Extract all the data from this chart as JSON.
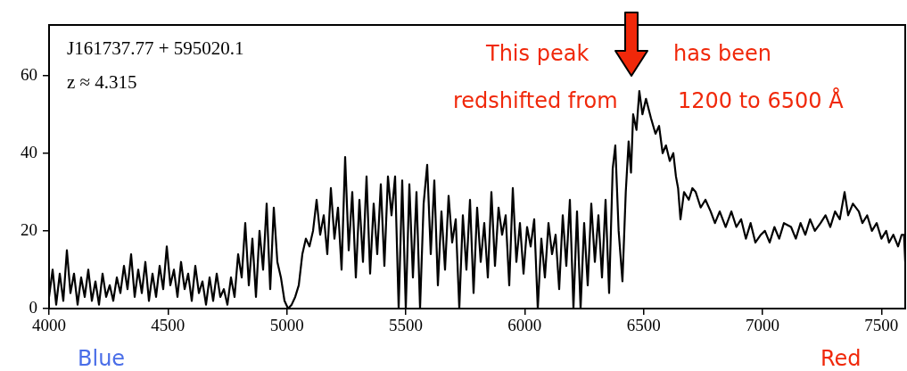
{
  "chart_data": {
    "type": "line",
    "color": "#000000",
    "x": [
      4000,
      4015,
      4030,
      4045,
      4060,
      4075,
      4090,
      4105,
      4120,
      4135,
      4150,
      4165,
      4180,
      4195,
      4210,
      4225,
      4240,
      4255,
      4270,
      4285,
      4300,
      4315,
      4330,
      4345,
      4360,
      4375,
      4390,
      4405,
      4420,
      4435,
      4450,
      4465,
      4480,
      4495,
      4510,
      4525,
      4540,
      4555,
      4570,
      4585,
      4600,
      4615,
      4630,
      4645,
      4660,
      4675,
      4690,
      4705,
      4720,
      4735,
      4750,
      4765,
      4780,
      4795,
      4810,
      4825,
      4840,
      4855,
      4870,
      4885,
      4900,
      4915,
      4930,
      4945,
      4960,
      4975,
      4990,
      5005,
      5020,
      5035,
      5050,
      5065,
      5080,
      5095,
      5110,
      5125,
      5140,
      5155,
      5170,
      5185,
      5200,
      5215,
      5230,
      5245,
      5260,
      5275,
      5290,
      5305,
      5320,
      5335,
      5350,
      5365,
      5380,
      5395,
      5410,
      5425,
      5440,
      5455,
      5470,
      5485,
      5500,
      5515,
      5530,
      5545,
      5560,
      5575,
      5590,
      5605,
      5620,
      5635,
      5650,
      5665,
      5680,
      5695,
      5710,
      5725,
      5740,
      5755,
      5770,
      5785,
      5800,
      5815,
      5830,
      5845,
      5860,
      5875,
      5890,
      5905,
      5920,
      5935,
      5950,
      5965,
      5980,
      5995,
      6010,
      6025,
      6040,
      6055,
      6070,
      6085,
      6100,
      6115,
      6130,
      6145,
      6160,
      6175,
      6190,
      6205,
      6220,
      6235,
      6250,
      6265,
      6280,
      6295,
      6310,
      6325,
      6340,
      6355,
      6370,
      6381,
      6395,
      6411,
      6425,
      6437,
      6447,
      6456,
      6470,
      6482,
      6495,
      6510,
      6531,
      6550,
      6565,
      6580,
      6594,
      6610,
      6625,
      6636,
      6645,
      6655,
      6670,
      6690,
      6705,
      6719,
      6740,
      6760,
      6782,
      6800,
      6820,
      6845,
      6869,
      6890,
      6910,
      6930,
      6950,
      6970,
      6993,
      7010,
      7030,
      7050,
      7070,
      7090,
      7120,
      7140,
      7160,
      7180,
      7200,
      7220,
      7244,
      7265,
      7285,
      7305,
      7325,
      7345,
      7360,
      7380,
      7405,
      7420,
      7440,
      7460,
      7480,
      7500,
      7520,
      7532,
      7550,
      7570,
      7585,
      7595,
      7600
    ],
    "values": [
      3,
      10,
      1,
      9,
      2,
      15,
      4,
      9,
      1,
      8,
      3,
      10,
      2,
      7,
      1,
      9,
      3,
      6,
      2,
      8,
      4,
      11,
      5,
      14,
      3,
      10,
      4,
      12,
      2,
      9,
      3,
      11,
      5,
      16,
      6,
      10,
      3,
      12,
      5,
      9,
      2,
      11,
      4,
      7,
      1,
      8,
      2,
      9,
      3,
      5,
      1,
      8,
      3,
      14,
      8,
      22,
      6,
      18,
      3,
      20,
      10,
      27,
      5,
      26,
      12,
      8,
      2,
      0,
      1,
      3,
      6,
      14,
      18,
      16,
      20,
      28,
      19,
      24,
      14,
      31,
      18,
      26,
      10,
      39,
      15,
      30,
      8,
      28,
      12,
      34,
      9,
      27,
      14,
      32,
      11,
      34,
      24,
      34,
      0,
      33,
      0,
      32,
      8,
      30,
      0,
      27,
      37,
      14,
      33,
      6,
      25,
      10,
      29,
      17,
      23,
      0,
      24,
      10,
      28,
      4,
      26,
      12,
      22,
      8,
      30,
      11,
      26,
      19,
      24,
      6,
      31,
      12,
      22,
      9,
      21,
      16,
      23,
      0,
      18,
      8,
      22,
      14,
      19,
      5,
      24,
      11,
      28,
      0,
      25,
      0,
      22,
      6,
      27,
      12,
      24,
      8,
      28,
      4,
      36,
      42,
      20,
      7,
      30,
      43,
      35,
      50,
      46,
      56,
      50,
      54,
      49,
      45,
      47,
      40,
      42,
      38,
      40,
      34,
      31,
      23,
      30,
      28,
      31,
      30,
      26,
      28,
      25,
      22,
      25,
      21,
      25,
      21,
      23,
      18,
      22,
      17,
      19,
      20,
      17,
      21,
      18,
      22,
      21,
      18,
      22,
      19,
      23,
      20,
      22,
      24,
      21,
      25,
      23,
      30,
      24,
      27,
      25,
      22,
      24,
      20,
      22,
      18,
      20,
      17,
      19,
      16,
      19,
      19,
      12
    ],
    "xlim": [
      4000,
      7600
    ],
    "xticks": [
      4000,
      4500,
      5000,
      5500,
      6000,
      6500,
      7000,
      7500
    ],
    "ylim": [
      0,
      73
    ],
    "yticks": [
      0,
      20,
      40,
      60
    ],
    "grid": false,
    "annotations": [
      "J161737.77 + 595020.1",
      "z ≈ 4.315",
      "This peak",
      "has been",
      "redshifted from",
      "1200 to 6500 Å",
      "Blue",
      "Red"
    ]
  }
}
